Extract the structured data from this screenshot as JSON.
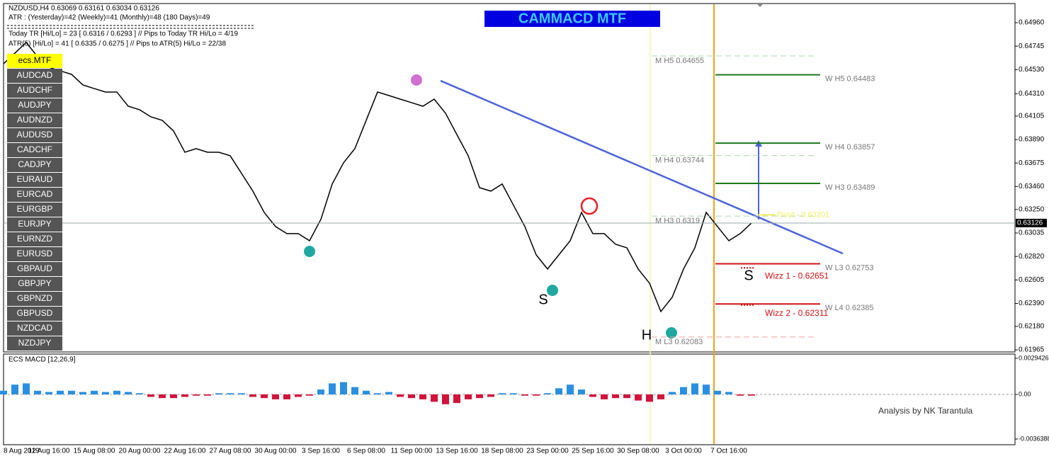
{
  "header": {
    "symbol": "NZDUSD,H4  0.63069 0.63161 0.63034 0.63126",
    "atr": "ATR :   (Yesterday)=42      (Weekly)=41      (Monthly)=48      (180 Days)=49",
    "today_tr": "Today TR [Hi/Lo] = 23 [ 0.6316 / 0.6293 ]   //  Pips to Today TR Hi/Lo  = 4/19",
    "atr5": "ATR(5) [Hi/Lo] = 41 [ 0.6335 / 0.6275 ]  //  Pips to ATR(5) Hi/Lo  = 22/38"
  },
  "indicator_title": "CAMMACD MTF",
  "symbols": [
    "ecs.MTF",
    "AUDCAD",
    "AUDCHF",
    "AUDJPY",
    "AUDNZD",
    "AUDUSD",
    "CADCHF",
    "CADJPY",
    "EURAUD",
    "EURCAD",
    "EURGBP",
    "EURJPY",
    "EURNZD",
    "EURUSD",
    "GBPAUD",
    "GBPJPY",
    "GBPNZD",
    "GBPUSD",
    "NZDCAD",
    "NZDJPY"
  ],
  "annotations": [
    "S",
    "H",
    "S"
  ],
  "footer": "Analysis by NK Tarantula",
  "chart_data": [
    {
      "type": "line",
      "color": "#000000",
      "categories": [
        "8 Aug 2019",
        null,
        null,
        null,
        "12 Aug 16:00",
        null,
        null,
        null,
        "15 Aug 08:00",
        null,
        null,
        null,
        "20 Aug 00:00",
        null,
        null,
        null,
        "22 Aug 16:00",
        null,
        null,
        null,
        "27 Aug 08:00",
        null,
        null,
        null,
        "30 Aug 00:00",
        null,
        null,
        null,
        "3 Sep 16:00",
        null,
        null,
        null,
        "6 Sep 08:00",
        null,
        null,
        null,
        "11 Sep 00:00",
        null,
        null,
        null,
        "13 Sep 16:00",
        null,
        null,
        null,
        "18 Sep 08:00",
        null,
        null,
        null,
        "23 Sep 00:00",
        null,
        null,
        null,
        "25 Sep 16:00",
        null,
        null,
        null,
        "30 Sep 08:00",
        null,
        null,
        null,
        "3 Oct 00:00",
        null,
        null,
        null,
        "7 Oct 16:00",
        null,
        null
      ],
      "values": [
        0.64584,
        0.64681,
        0.64779,
        0.64649,
        0.64552,
        0.64519,
        0.64487,
        0.6439,
        0.64357,
        0.64325,
        0.64325,
        0.64195,
        0.64163,
        0.64098,
        0.64066,
        0.63969,
        0.63774,
        0.63807,
        0.63774,
        0.63774,
        0.63742,
        0.6358,
        0.63418,
        0.63223,
        0.63094,
        0.63029,
        0.63029,
        0.62964,
        0.63159,
        0.63483,
        0.63677,
        0.63807,
        0.64066,
        0.64325,
        0.64293,
        0.6426,
        0.64228,
        0.64195,
        0.6426,
        0.64131,
        0.63936,
        0.63742,
        0.6345,
        0.63418,
        0.63483,
        0.63288,
        0.63094,
        0.62835,
        0.62705,
        0.62835,
        0.62964,
        0.63223,
        0.63029,
        0.63029,
        0.62932,
        0.62899,
        0.62705,
        0.62575,
        0.62316,
        0.62446,
        0.62705,
        0.62899,
        0.63223,
        0.63094,
        0.62964,
        0.63029,
        0.63126
      ],
      "ylim": [
        0.61946,
        0.65135
      ],
      "yticks": [
        {
          "value": 0.6496,
          "label": "0.64960"
        },
        0.64745,
        {
          "value": 0.6453,
          "label": "0.64530"
        },
        {
          "value": 0.6431,
          "label": "0.64310"
        },
        0.64105,
        {
          "value": 0.6389,
          "label": "0.63890"
        },
        0.63675,
        {
          "value": 0.6346,
          "label": "0.63460"
        },
        {
          "value": 0.6325,
          "label": "0.63250"
        },
        0.63035,
        {
          "value": 0.6282,
          "label": "0.62820"
        },
        0.62605,
        {
          "value": 0.6239,
          "label": "0.62390"
        },
        {
          "value": 0.6218,
          "label": "0.62180"
        },
        0.61965
      ],
      "last": 0.63126,
      "weekly_levels": [
        {
          "label": "W H5 0.64483",
          "value": 0.64483,
          "color": "#1a7a1a"
        },
        {
          "label": "W H4 0.63857",
          "value": 0.63857,
          "color": "#1a7a1a"
        },
        {
          "label": "W H3 0.63489",
          "value": 0.63489,
          "color": "#1a7a1a"
        },
        {
          "label": "W L3 0.62753",
          "value": 0.62753,
          "color": "#d01010"
        },
        {
          "label": "W L4 0.62385",
          "value": 0.62385,
          "color": "#d01010"
        }
      ],
      "monthly_levels": [
        {
          "label": "M H5 0.64655",
          "value": 0.64655,
          "color": "#a8d8a8"
        },
        {
          "label": "M H4 0.63744",
          "value": 0.63744,
          "color": "#a8d8a8"
        },
        {
          "label": "M H3 0.6319",
          "value": 0.6319,
          "color": "#a8d8a8"
        },
        {
          "label": "M L3 0.62083",
          "value": 0.62083,
          "color": "#f0a0a0"
        }
      ],
      "wizz_levels": [
        {
          "label": "Wizz 1 - 0.62651",
          "value": 0.62651,
          "color": "#d01010"
        },
        {
          "label": "Wizz 2 - 0.62311",
          "value": 0.62311,
          "color": "#d01010"
        }
      ],
      "pivot": {
        "label": "Pivot - 0.63201",
        "value": 0.63201,
        "color": "#f0f060"
      }
    },
    {
      "type": "bar",
      "title": "ECS MACD [12,26,9]",
      "up_color": "#2a8fe0",
      "down_color": "#d2143a",
      "values": [
        0.0003,
        0.0008,
        0.0009,
        0.0003,
        0.0002,
        0.0003,
        0.0003,
        0.0002,
        0.0003,
        0.0002,
        0.0003,
        0.0002,
        0.0001,
        -0.0002,
        -0.0003,
        -0.0003,
        -0.0002,
        -0.0001,
        -0.0001,
        0.0001,
        0.0001,
        0.0001,
        -0.0002,
        -0.0003,
        -0.0004,
        -0.0004,
        -0.0002,
        -0.0001,
        0.0004,
        0.0009,
        0.001,
        0.0006,
        0.0003,
        0.0001,
        0.0002,
        -0.0002,
        -0.0003,
        -0.0004,
        -0.0006,
        -0.0008,
        -0.0007,
        -0.0004,
        -0.0003,
        -0.0002,
        0.0001,
        0.0001,
        -0.0001,
        -0.0001,
        0.0001,
        0.0005,
        0.0008,
        0.0004,
        -0.0002,
        -0.0004,
        -0.0003,
        -0.0003,
        -0.0005,
        -0.0006,
        -0.0004,
        0.0002,
        0.0006,
        0.0009,
        0.0008,
        0.0003,
        0.0002,
        -0.0001,
        -0.0001
      ],
      "ylim": [
        -0.0041,
        0.00329
      ],
      "yticks": [
        0.0029426,
        {
          "value": 0,
          "label": "0.00"
        },
        -0.0036388
      ]
    }
  ]
}
